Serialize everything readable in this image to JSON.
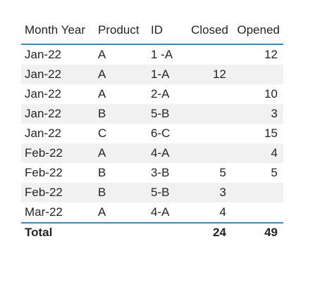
{
  "table": {
    "columns": [
      "Month Year",
      "Product",
      "ID",
      "Closed",
      "Opened"
    ],
    "rows": [
      {
        "month_year": "Jan-22",
        "product": "A",
        "id": "1 -A",
        "closed": "",
        "opened": "12"
      },
      {
        "month_year": "Jan-22",
        "product": "A",
        "id": "1-A",
        "closed": "12",
        "opened": ""
      },
      {
        "month_year": "Jan-22",
        "product": "A",
        "id": "2-A",
        "closed": "",
        "opened": "10"
      },
      {
        "month_year": "Jan-22",
        "product": "B",
        "id": "5-B",
        "closed": "",
        "opened": "3"
      },
      {
        "month_year": "Jan-22",
        "product": "C",
        "id": "6-C",
        "closed": "",
        "opened": "15"
      },
      {
        "month_year": "Feb-22",
        "product": "A",
        "id": "4-A",
        "closed": "",
        "opened": "4"
      },
      {
        "month_year": "Feb-22",
        "product": "B",
        "id": "3-B",
        "closed": "5",
        "opened": "5"
      },
      {
        "month_year": "Feb-22",
        "product": "B",
        "id": "5-B",
        "closed": "3",
        "opened": ""
      },
      {
        "month_year": "Mar-22",
        "product": "A",
        "id": "4-A",
        "closed": "4",
        "opened": ""
      }
    ],
    "total": {
      "label": "Total",
      "closed": "24",
      "opened": "49"
    }
  },
  "colors": {
    "accent_line": "#2f8fd6",
    "alt_row_bg": "#f1f1f1",
    "text": "#252423"
  }
}
